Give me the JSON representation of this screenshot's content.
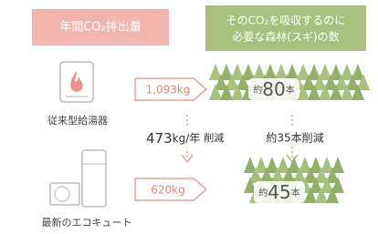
{
  "header": {
    "emissions_title": "年間CO₂排出量",
    "trees_title_lines": [
      "そのCO₂を吸収するのに",
      "必要な森林(スギ)の数"
    ]
  },
  "conventional": {
    "label": "従来型給湯器",
    "emission": "1,093kg",
    "trees": {
      "prefix": "約",
      "number": "80",
      "unit": "本"
    }
  },
  "reduction": {
    "emission": {
      "number": "473",
      "unit": "kg/年",
      "label": "削減"
    },
    "trees": "約35本削減"
  },
  "ecocute": {
    "label": "最新のエコキュート",
    "emission": "620kg",
    "trees": {
      "prefix": "約",
      "number": "45",
      "unit": "本"
    }
  }
}
